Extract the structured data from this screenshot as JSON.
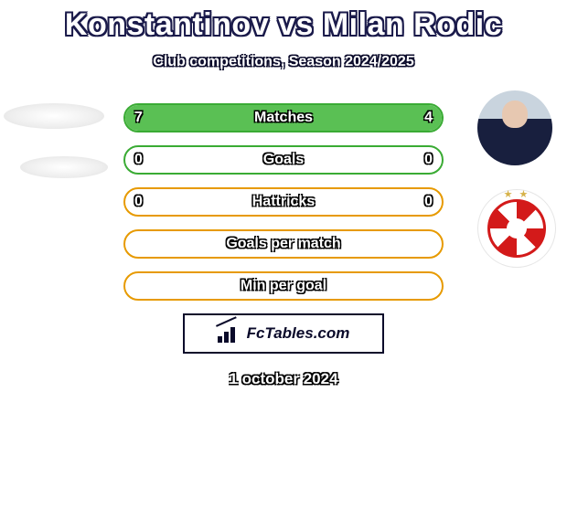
{
  "title": "Konstantinov vs Milan Rodic",
  "subtitle": "Club competitions, Season 2024/2025",
  "date_text": "1 october 2024",
  "brand": "FcTables.com",
  "colors": {
    "green_border": "#3aab34",
    "green_fill": "#5ac054",
    "orange_border": "#e79a00",
    "orange_fill": "#f6b516",
    "outline_text": "#0a0a2a",
    "club_red": "#d31a1a"
  },
  "rows": [
    {
      "label": "Matches",
      "left": "7",
      "right": "4",
      "border": "#3aab34",
      "left_fill": "#5ac054",
      "right_fill": "#5ac054",
      "left_pct": 63.6,
      "right_pct": 36.4
    },
    {
      "label": "Goals",
      "left": "0",
      "right": "0",
      "border": "#3aab34",
      "left_fill": "#5ac054",
      "right_fill": "#5ac054",
      "left_pct": 0,
      "right_pct": 0
    },
    {
      "label": "Hattricks",
      "left": "0",
      "right": "0",
      "border": "#e79a00",
      "left_fill": "#f6b516",
      "right_fill": "#f6b516",
      "left_pct": 0,
      "right_pct": 0
    },
    {
      "label": "Goals per match",
      "left": "",
      "right": "",
      "border": "#e79a00",
      "left_fill": "#f6b516",
      "right_fill": "#f6b516",
      "left_pct": 0,
      "right_pct": 0
    },
    {
      "label": "Min per goal",
      "left": "",
      "right": "",
      "border": "#e79a00",
      "left_fill": "#f6b516",
      "right_fill": "#f6b516",
      "left_pct": 0,
      "right_pct": 0
    }
  ]
}
